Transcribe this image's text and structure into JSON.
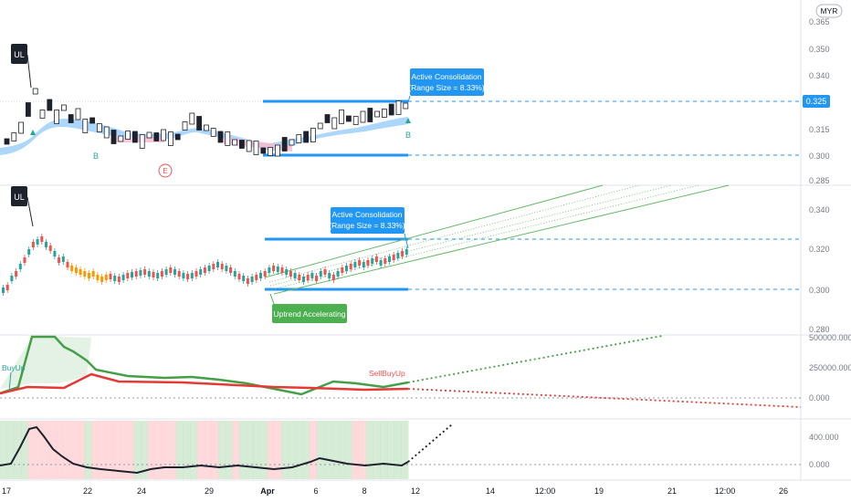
{
  "currency": "MYR",
  "symbol_label": "UL",
  "price_badge": "0.325",
  "pane1": {
    "ticks": [
      "0.365",
      "0.350",
      "0.340",
      "0.325",
      "0.315",
      "0.300",
      "0.285"
    ],
    "annotation_line1": "Active Consolidation",
    "annotation_line2": "(Range Size = 8.33%)",
    "buy_marker": "B",
    "event_marker": "E"
  },
  "pane2": {
    "ticks": [
      "0.340",
      "0.320",
      "0.300",
      "0.280"
    ],
    "annotation_line1": "Active Consolidation",
    "annotation_line2": "(Range Size = 8.33%)",
    "trend_label": "Uptrend Accelerating"
  },
  "pane3": {
    "ticks": [
      "500000.000",
      "250000.000",
      "0.000"
    ],
    "label_buy": "BuyUp",
    "label_sell_buy": "SellBuyUp"
  },
  "pane4": {
    "ticks": [
      "400.000",
      "0.000"
    ]
  },
  "time_axis": [
    "17",
    "22",
    "24",
    "29",
    "Apr",
    "6",
    "8",
    "12",
    "14",
    "12:00",
    "19",
    "21",
    "12:00",
    "26"
  ],
  "colors": {
    "up": "#26a69a",
    "down": "#ef5350",
    "accent_blue": "#2196f3",
    "green_line": "#43a047",
    "red_line": "#e53935"
  }
}
